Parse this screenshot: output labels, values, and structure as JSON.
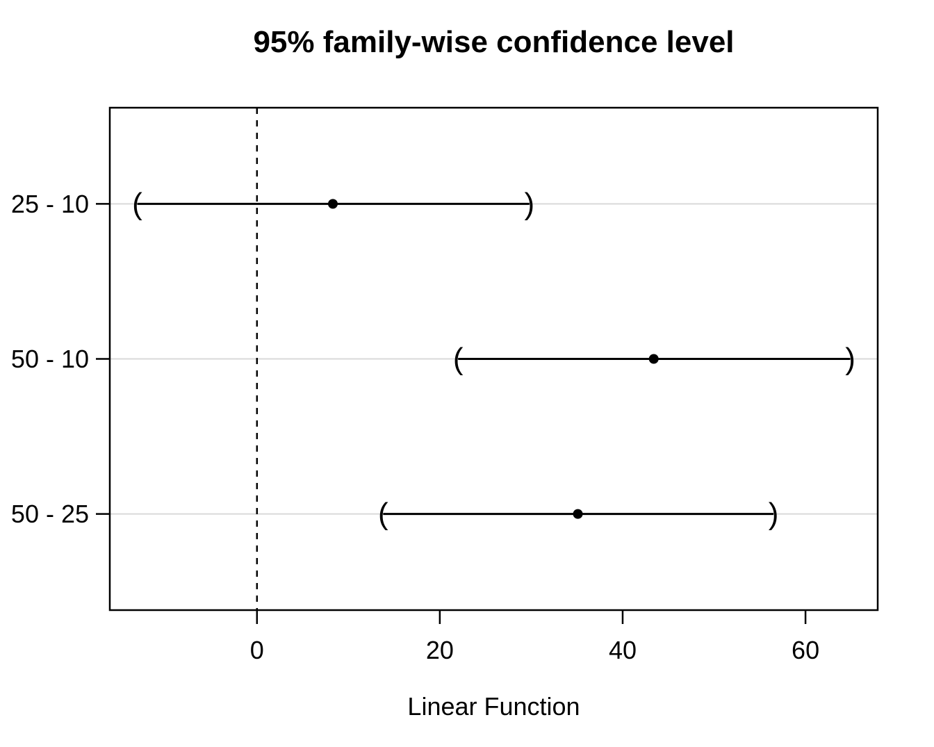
{
  "chart_data": {
    "type": "scatter",
    "subtype": "horizontal-confidence-intervals",
    "title": "95% family-wise confidence level",
    "xlabel": "Linear Function",
    "ylabel": "",
    "xlim": [
      -16.1,
      67.9
    ],
    "x_ticks": [
      0,
      20,
      40,
      60
    ],
    "categories": [
      "25 - 10",
      "50 - 10",
      "50 - 25"
    ],
    "series": [
      {
        "name": "25 - 10",
        "lower": -13.1,
        "estimate": 8.3,
        "upper": 29.8
      },
      {
        "name": "50 - 10",
        "lower": 22.0,
        "estimate": 43.4,
        "upper": 64.9
      },
      {
        "name": "50 - 25",
        "lower": 13.8,
        "estimate": 35.1,
        "upper": 56.5
      }
    ],
    "reference_line_x": 0,
    "reference_line_style": "dashed",
    "endpoint_style": "parentheses",
    "grid": "horizontal-light-per-row",
    "legend": "none",
    "colors": {
      "interval": "#000000",
      "point": "#000000",
      "grid": "#d9d9d9",
      "reference": "#000000",
      "box": "#000000",
      "background": "#ffffff"
    }
  }
}
